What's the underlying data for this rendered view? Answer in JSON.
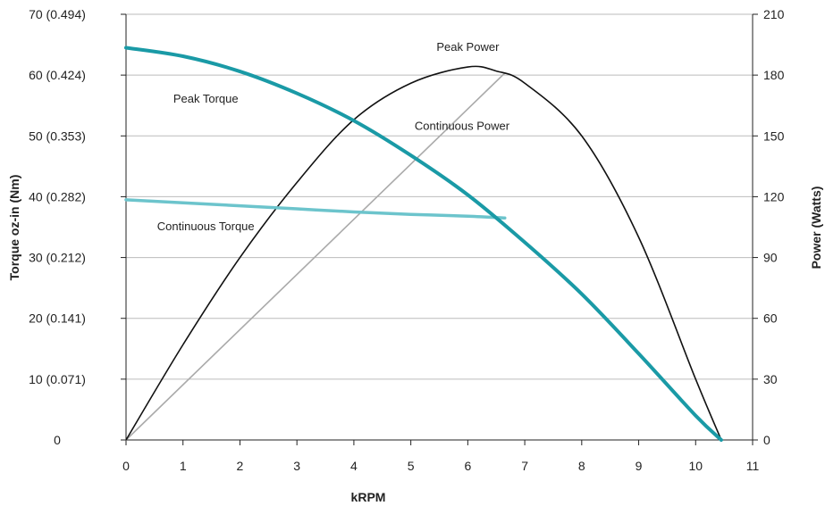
{
  "chart_data": {
    "type": "line",
    "xlabel": "kRPM",
    "ylabel_left": "Torque oz-in (Nm)",
    "ylabel_right": "Power (Watts)",
    "xlim": [
      0,
      11
    ],
    "ylim_left": [
      0,
      70
    ],
    "ylim_right": [
      0,
      210
    ],
    "x_ticks": [
      "0",
      "1",
      "2",
      "3",
      "4",
      "5",
      "6",
      "7",
      "8",
      "9",
      "10",
      "11"
    ],
    "y_left_ticks": [
      "0",
      "10 (0.071)",
      "20 (0.141)",
      "30 (0.212)",
      "40 (0.282)",
      "50 (0.353)",
      "60 (0.424)",
      "70 (0.494)"
    ],
    "y_right_ticks": [
      "0",
      "30",
      "60",
      "90",
      "120",
      "150",
      "180",
      "210"
    ],
    "grid": "horizontal",
    "colors": {
      "peak_torque": "#1a9aa6",
      "continuous_torque": "#6cc4cc",
      "peak_power": "#111111",
      "continuous_power": "#aaaaaa",
      "grid": "#bbbbbb"
    },
    "series": [
      {
        "name": "Peak Torque",
        "axis": "left",
        "x": [
          0,
          1,
          2,
          3,
          4,
          5,
          6,
          7,
          8,
          9,
          10,
          10.45
        ],
        "y": [
          64.5,
          63.1,
          60.6,
          57.0,
          52.5,
          46.8,
          40.3,
          32.5,
          24.0,
          14.2,
          4.0,
          0
        ]
      },
      {
        "name": "Continuous Torque",
        "axis": "left",
        "x": [
          0,
          1,
          2,
          3,
          4,
          5,
          6,
          6.65
        ],
        "y": [
          39.5,
          39.0,
          38.5,
          38.0,
          37.5,
          37.1,
          36.8,
          36.5
        ]
      },
      {
        "name": "Peak Power",
        "axis": "right",
        "x": [
          0,
          1,
          2,
          3,
          4,
          5,
          6,
          6.5,
          7,
          8,
          9,
          10,
          10.45
        ],
        "y": [
          0,
          47,
          90,
          127,
          158,
          176,
          184,
          182,
          176,
          150,
          100,
          30,
          0
        ]
      },
      {
        "name": "Continuous Power",
        "axis": "right",
        "x": [
          0,
          6.65
        ],
        "y": [
          0,
          181
        ]
      }
    ],
    "annotations": [
      {
        "text": "Peak Torque",
        "x": 1.4,
        "y_left": 55.5
      },
      {
        "text": "Continuous Torque",
        "x": 1.4,
        "y_left": 34.5
      },
      {
        "text": "Peak Power",
        "x": 6.0,
        "y_left": 64.0
      },
      {
        "text": "Continuous Power",
        "x": 5.9,
        "y_left": 51.0
      }
    ]
  }
}
